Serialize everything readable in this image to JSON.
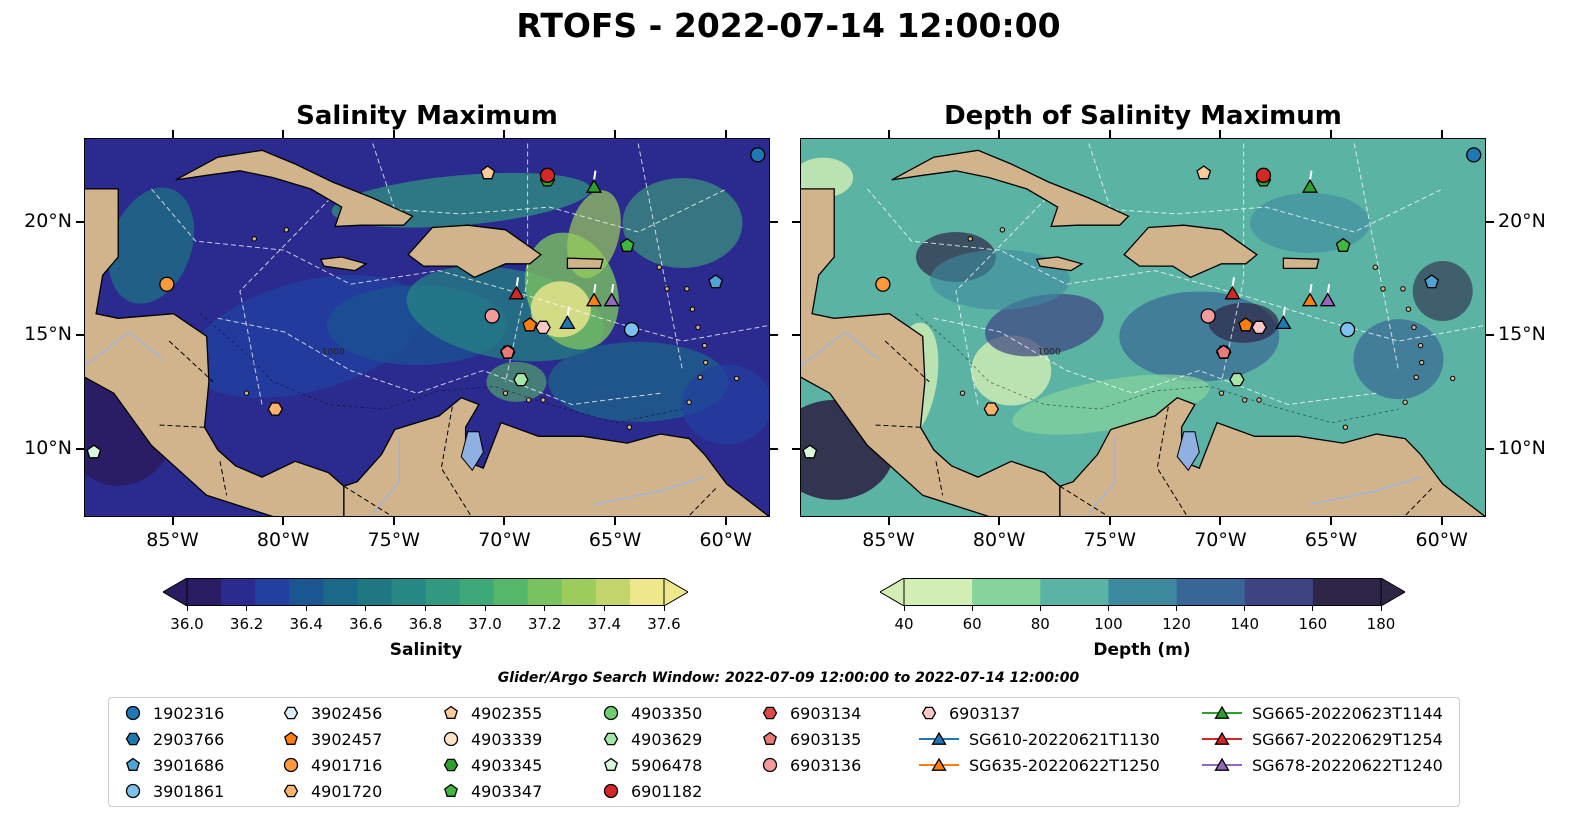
{
  "suptitle": "RTOFS - 2022-07-14 12:00:00",
  "panels": {
    "left": {
      "title": "Salinity Maximum"
    },
    "right": {
      "title": "Depth of Salinity Maximum"
    }
  },
  "map": {
    "lon_range": [
      -89,
      -58
    ],
    "lat_range": [
      7,
      23.7
    ],
    "lon_ticks": [
      {
        "value": -85,
        "label": "85°W"
      },
      {
        "value": -80,
        "label": "80°W"
      },
      {
        "value": -75,
        "label": "75°W"
      },
      {
        "value": -70,
        "label": "70°W"
      },
      {
        "value": -65,
        "label": "65°W"
      },
      {
        "value": -60,
        "label": "60°W"
      }
    ],
    "lat_ticks": [
      {
        "value": 20,
        "label": "20°N"
      },
      {
        "value": 15,
        "label": "15°N"
      },
      {
        "value": 10,
        "label": "10°N"
      }
    ],
    "land_color": "#d2b48c",
    "contour_labels": [
      "1000"
    ]
  },
  "colorbars": {
    "salinity": {
      "label": "Salinity",
      "ticks": [
        "36.0",
        "36.2",
        "36.4",
        "36.6",
        "36.8",
        "37.0",
        "37.2",
        "37.4",
        "37.6"
      ],
      "extend": "both",
      "colors": [
        "#2a1c62",
        "#2b2a8f",
        "#22409f",
        "#1a5691",
        "#1b6888",
        "#1e7781",
        "#258882",
        "#30997f",
        "#3ea978",
        "#56b76b",
        "#79c260",
        "#9ccc5b",
        "#c3d46a",
        "#eee78c"
      ]
    },
    "depth": {
      "label": "Depth (m)",
      "ticks": [
        "40",
        "60",
        "80",
        "100",
        "120",
        "140",
        "160",
        "180"
      ],
      "extend": "both",
      "colors": [
        "#d3eeb4",
        "#86d49d",
        "#5bb3a4",
        "#3d8aa0",
        "#386696",
        "#3e4381",
        "#2f2647"
      ]
    }
  },
  "search_window": "Glider/Argo Search Window: 2022-07-09 12:00:00 to 2022-07-14 12:00:00",
  "platforms": [
    {
      "label": "1902316",
      "marker": "circle",
      "color": "#1f77b4",
      "lon": -58.6,
      "lat": 23.0
    },
    {
      "label": "2903766",
      "marker": "hexagon",
      "color": "#1f77b4",
      "lon": null,
      "lat": null
    },
    {
      "label": "3901686",
      "marker": "pentagon",
      "color": "#4ea3d7",
      "lon": -60.5,
      "lat": 17.4
    },
    {
      "label": "3901861",
      "marker": "circle",
      "color": "#7fc1ee",
      "lon": -64.3,
      "lat": 15.3
    },
    {
      "label": "3902456",
      "marker": "hexagon",
      "color": "#d9eef9",
      "lon": null,
      "lat": null
    },
    {
      "label": "3902457",
      "marker": "pentagon",
      "color": "#ff7f0e",
      "lon": -68.9,
      "lat": 15.5
    },
    {
      "label": "4901716",
      "marker": "circle",
      "color": "#ff9a3c",
      "lon": -85.3,
      "lat": 17.3
    },
    {
      "label": "4901720",
      "marker": "hexagon",
      "color": "#ffb26b",
      "lon": -80.4,
      "lat": 11.8
    },
    {
      "label": "4902355",
      "marker": "pentagon",
      "color": "#ffcc99",
      "lon": -70.8,
      "lat": 22.2
    },
    {
      "label": "4903339",
      "marker": "circle",
      "color": "#ffe4c7",
      "lon": null,
      "lat": null
    },
    {
      "label": "4903345",
      "marker": "hexagon",
      "color": "#2ca02c",
      "lon": -68.1,
      "lat": 21.9
    },
    {
      "label": "4903347",
      "marker": "pentagon",
      "color": "#3fb83f",
      "lon": -64.5,
      "lat": 19.0
    },
    {
      "label": "4903350",
      "marker": "circle",
      "color": "#6fcf6f",
      "lon": null,
      "lat": null
    },
    {
      "label": "4903629",
      "marker": "hexagon",
      "color": "#a6e6a6",
      "lon": -69.3,
      "lat": 13.1
    },
    {
      "label": "5906478",
      "marker": "pentagon",
      "color": "#d9f7d9",
      "lon": -88.6,
      "lat": 9.9
    },
    {
      "label": "6901182",
      "marker": "circle",
      "color": "#d62728",
      "lon": -68.1,
      "lat": 22.1
    },
    {
      "label": "6903134",
      "marker": "hexagon",
      "color": "#e04848",
      "lon": -69.9,
      "lat": 14.3
    },
    {
      "label": "6903135",
      "marker": "pentagon",
      "color": "#ec7878",
      "lon": -69.9,
      "lat": 14.3
    },
    {
      "label": "6903136",
      "marker": "circle",
      "color": "#f39a9a",
      "lon": -70.6,
      "lat": 15.9
    },
    {
      "label": "6903137",
      "marker": "hexagon",
      "color": "#fbc8c8",
      "lon": -68.3,
      "lat": 15.4
    },
    {
      "label": "SG610-20220621T1130",
      "marker": "triangle",
      "color": "#1f77b4",
      "line": true,
      "lon": -67.2,
      "lat": 15.6
    },
    {
      "label": "SG635-20220622T1250",
      "marker": "triangle",
      "color": "#ff7f0e",
      "line": true,
      "lon": -66.0,
      "lat": 16.6
    },
    {
      "label": "SG665-20220623T1144",
      "marker": "triangle",
      "color": "#2ca02c",
      "line": true,
      "lon": -66.0,
      "lat": 21.6
    },
    {
      "label": "SG667-20220629T1254",
      "marker": "triangle",
      "color": "#d62728",
      "line": true,
      "lon": -69.5,
      "lat": 16.9
    },
    {
      "label": "SG678-20220622T1240",
      "marker": "triangle",
      "color": "#9467bd",
      "line": true,
      "lon": -65.2,
      "lat": 16.6
    }
  ]
}
